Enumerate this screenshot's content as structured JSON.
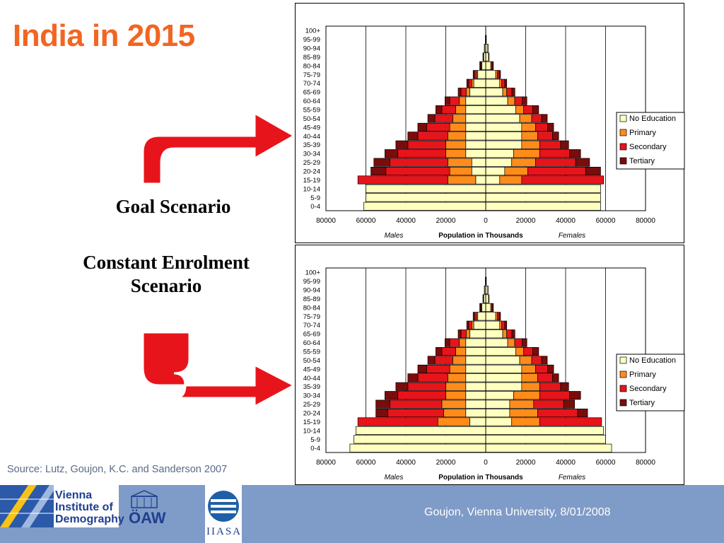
{
  "slide": {
    "title": "India in 2015",
    "goal_label": "Goal Scenario",
    "constant_label": "Constant Enrolment Scenario",
    "source": "Source: Lutz, Goujon, K.C. and Sanderson 2007",
    "footer": "Goujon,  Vienna University, 8/01/2008",
    "logos": {
      "vid": [
        "Vienna",
        "Institute of",
        "Demography"
      ],
      "oaw": "ÖAW",
      "iiasa": "IIASA"
    },
    "colors": {
      "title": "#f26522",
      "arrow": "#e8141b",
      "footer_bg": "#7f9bc7"
    }
  },
  "chart_data": [
    {
      "type": "bar",
      "subtype": "population-pyramid",
      "title": "",
      "scenario": "Goal Scenario",
      "xlabel": "Population in Thousands",
      "left_label": "Males",
      "right_label": "Females",
      "xlim": [
        -80000,
        80000
      ],
      "xticks": [
        80000,
        60000,
        40000,
        20000,
        0,
        20000,
        40000,
        60000,
        80000
      ],
      "grid": true,
      "legend_position": "right",
      "series": [
        {
          "name": "No Education",
          "color": "#ffffc0"
        },
        {
          "name": "Primary",
          "color": "#ff8c1a"
        },
        {
          "name": "Secondary",
          "color": "#e8141b"
        },
        {
          "name": "Tertiary",
          "color": "#7a0c0c"
        }
      ],
      "categories": [
        "100+",
        "95-99",
        "90-94",
        "85-89",
        "80-84",
        "75-79",
        "70-74",
        "65-69",
        "60-64",
        "55-59",
        "50-54",
        "45-49",
        "40-44",
        "35-39",
        "30-34",
        "25-29",
        "20-24",
        "15-19",
        "10-14",
        "5-9",
        "0-4"
      ],
      "males": [
        [
          0,
          0,
          0,
          0
        ],
        [
          200,
          0,
          0,
          0
        ],
        [
          600,
          100,
          0,
          0
        ],
        [
          1000,
          200,
          100,
          100
        ],
        [
          2000,
          300,
          400,
          300
        ],
        [
          4000,
          600,
          1000,
          700
        ],
        [
          6000,
          1000,
          1500,
          1000
        ],
        [
          8000,
          1800,
          2600,
          1400
        ],
        [
          10000,
          3200,
          4800,
          2400
        ],
        [
          10000,
          5000,
          7000,
          3000
        ],
        [
          10000,
          6500,
          9000,
          3500
        ],
        [
          10000,
          8000,
          11500,
          4500
        ],
        [
          10000,
          9000,
          15000,
          5000
        ],
        [
          10000,
          10000,
          19000,
          6000
        ],
        [
          10000,
          10000,
          24000,
          6500
        ],
        [
          7000,
          12000,
          29000,
          8000
        ],
        [
          7000,
          11000,
          32000,
          7500
        ],
        [
          5000,
          14000,
          45000,
          0
        ],
        [
          60000,
          0,
          0,
          0
        ],
        [
          60000,
          0,
          0,
          0
        ],
        [
          61000,
          0,
          0,
          0
        ]
      ],
      "females": [
        [
          0,
          0,
          0,
          0
        ],
        [
          300,
          0,
          0,
          0
        ],
        [
          1000,
          200,
          0,
          0
        ],
        [
          1400,
          300,
          0,
          0
        ],
        [
          2500,
          500,
          500,
          300
        ],
        [
          5000,
          800,
          900,
          700
        ],
        [
          7000,
          1000,
          1500,
          1000
        ],
        [
          8500,
          2000,
          2600,
          1500
        ],
        [
          11000,
          3500,
          3800,
          2300
        ],
        [
          15000,
          4000,
          4500,
          3000
        ],
        [
          17000,
          6000,
          5000,
          2800
        ],
        [
          18000,
          7000,
          6000,
          3000
        ],
        [
          18000,
          8000,
          7500,
          3000
        ],
        [
          18000,
          9000,
          10500,
          4000
        ],
        [
          14000,
          13000,
          15000,
          5500
        ],
        [
          13000,
          12000,
          20000,
          7000
        ],
        [
          9500,
          11500,
          29000,
          7500
        ],
        [
          7000,
          11000,
          41000,
          0
        ],
        [
          57500,
          0,
          0,
          0
        ],
        [
          57500,
          0,
          0,
          0
        ],
        [
          57500,
          0,
          0,
          0
        ]
      ]
    },
    {
      "type": "bar",
      "subtype": "population-pyramid",
      "title": "",
      "scenario": "Constant Enrolment Scenario",
      "xlabel": "Population in Thousands",
      "left_label": "Males",
      "right_label": "Females",
      "xlim": [
        -80000,
        80000
      ],
      "xticks": [
        80000,
        60000,
        40000,
        20000,
        0,
        20000,
        40000,
        60000,
        80000
      ],
      "grid": true,
      "legend_position": "right",
      "series": [
        {
          "name": "No Education",
          "color": "#ffffc0"
        },
        {
          "name": "Primary",
          "color": "#ff8c1a"
        },
        {
          "name": "Secondary",
          "color": "#e8141b"
        },
        {
          "name": "Tertiary",
          "color": "#7a0c0c"
        }
      ],
      "categories": [
        "100+",
        "95-99",
        "90-94",
        "85-89",
        "80-84",
        "75-79",
        "70-74",
        "65-69",
        "60-64",
        "55-59",
        "50-54",
        "45-49",
        "40-44",
        "35-39",
        "30-34",
        "25-29",
        "20-24",
        "15-19",
        "10-14",
        "5-9",
        "0-4"
      ],
      "males": [
        [
          0,
          0,
          0,
          0
        ],
        [
          200,
          0,
          0,
          0
        ],
        [
          600,
          100,
          0,
          0
        ],
        [
          1000,
          200,
          100,
          100
        ],
        [
          2000,
          300,
          400,
          300
        ],
        [
          4000,
          600,
          1000,
          700
        ],
        [
          6000,
          1000,
          1500,
          1000
        ],
        [
          8000,
          1800,
          2600,
          1400
        ],
        [
          10000,
          3200,
          4800,
          2400
        ],
        [
          10000,
          5000,
          7000,
          3000
        ],
        [
          10000,
          6500,
          9000,
          3500
        ],
        [
          10000,
          8000,
          11500,
          4500
        ],
        [
          10000,
          9000,
          15000,
          5000
        ],
        [
          10000,
          10000,
          19000,
          6000
        ],
        [
          10000,
          10000,
          24000,
          6500
        ],
        [
          10000,
          12000,
          26000,
          7000
        ],
        [
          10000,
          11000,
          28000,
          6000
        ],
        [
          8000,
          16000,
          40000,
          0
        ],
        [
          65000,
          0,
          0,
          0
        ],
        [
          66000,
          0,
          0,
          0
        ],
        [
          68000,
          0,
          0,
          0
        ]
      ],
      "females": [
        [
          0,
          0,
          0,
          0
        ],
        [
          300,
          0,
          0,
          0
        ],
        [
          1000,
          200,
          0,
          0
        ],
        [
          1400,
          300,
          0,
          0
        ],
        [
          2500,
          500,
          500,
          300
        ],
        [
          5000,
          800,
          900,
          700
        ],
        [
          7000,
          1000,
          1500,
          1000
        ],
        [
          8500,
          2000,
          2600,
          1500
        ],
        [
          11000,
          3500,
          3800,
          2300
        ],
        [
          15000,
          4000,
          4500,
          3000
        ],
        [
          17000,
          6000,
          5000,
          2800
        ],
        [
          18000,
          7000,
          6000,
          3000
        ],
        [
          18000,
          8000,
          7500,
          3000
        ],
        [
          18000,
          9000,
          10500,
          4000
        ],
        [
          14000,
          13000,
          15000,
          5500
        ],
        [
          12000,
          12000,
          15000,
          5500
        ],
        [
          12000,
          14000,
          20000,
          5000
        ],
        [
          13000,
          14000,
          31000,
          0
        ],
        [
          59000,
          0,
          0,
          0
        ],
        [
          60000,
          0,
          0,
          0
        ],
        [
          63000,
          0,
          0,
          0
        ]
      ]
    }
  ]
}
